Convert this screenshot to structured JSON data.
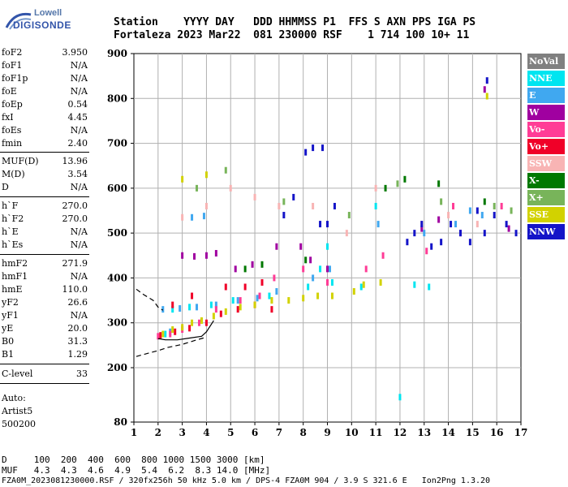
{
  "logo": {
    "line1": "Lowell",
    "line2": "DIGISONDE"
  },
  "header": {
    "line1": "Station    YYYY DAY   DDD HHMMSS P1  FFS S AXN PPS IGA PS",
    "line2": "Fortaleza 2023 Mar22  081 230000 RSF    1 714 100 10+ 11"
  },
  "params": [
    {
      "k": "foF2",
      "v": "3.950"
    },
    {
      "k": "foF1",
      "v": "N/A"
    },
    {
      "k": "foF1p",
      "v": "N/A"
    },
    {
      "k": "foE",
      "v": "N/A"
    },
    {
      "k": "foEp",
      "v": "0.54"
    },
    {
      "k": "fxI",
      "v": "4.45"
    },
    {
      "k": "foEs",
      "v": "N/A"
    },
    {
      "k": "fmin",
      "v": "2.40"
    },
    {
      "k": "MUF(D)",
      "v": "13.96"
    },
    {
      "k": "M(D)",
      "v": "3.54"
    },
    {
      "k": "D",
      "v": "N/A"
    },
    {
      "k": "h`F",
      "v": "270.0"
    },
    {
      "k": "h`F2",
      "v": "270.0"
    },
    {
      "k": "h`E",
      "v": "N/A"
    },
    {
      "k": "h`Es",
      "v": "N/A"
    },
    {
      "k": "hmF2",
      "v": "271.9"
    },
    {
      "k": "hmF1",
      "v": "N/A"
    },
    {
      "k": "hmE",
      "v": "110.0"
    },
    {
      "k": "yF2",
      "v": "26.6"
    },
    {
      "k": "yF1",
      "v": "N/A"
    },
    {
      "k": "yE",
      "v": "20.0"
    },
    {
      "k": "B0",
      "v": "31.3"
    },
    {
      "k": "B1",
      "v": "1.29"
    },
    {
      "k": "C-level",
      "v": "33"
    }
  ],
  "auto": {
    "line1": "Auto:",
    "line2": "Artist5",
    "line3": "500200"
  },
  "bottom": {
    "d_row": "D     100  200  400  600  800 1000 1500 3000 [km]",
    "muf_row": "MUF   4.3  4.3  4.6  4.9  5.4  6.2  8.3 14.0 [MHz]",
    "file_row": "FZA0M_2023081230000.RSF / 320fx256h 50 kHz 5.0 km / DPS-4 FZA0M 904 / 3.9 S 321.6 E   Ion2Png 1.3.20"
  },
  "legend": [
    {
      "label": "NoVal",
      "color": "#808080"
    },
    {
      "label": "NNE",
      "color": "#00e5f0"
    },
    {
      "label": "E",
      "color": "#40a8f0"
    },
    {
      "label": "W",
      "color": "#a000a0"
    },
    {
      "label": "Vo-",
      "color": "#ff3c96"
    },
    {
      "label": "Vo+",
      "color": "#f00028"
    },
    {
      "label": "SSW",
      "color": "#f8b4b4"
    },
    {
      "label": "X-",
      "color": "#007800"
    },
    {
      "label": "X+",
      "color": "#78b45a"
    },
    {
      "label": "SSE",
      "color": "#d2d200"
    },
    {
      "label": "NNW",
      "color": "#1414c8"
    }
  ],
  "chart_data": {
    "type": "scatter",
    "xlim": [
      1,
      17
    ],
    "ylim": [
      80,
      900
    ],
    "x_ticks": [
      "1",
      "2",
      "3",
      "4",
      "5",
      "6",
      "7",
      "8",
      "9",
      "10",
      "11",
      "12",
      "13",
      "14",
      "15",
      "16",
      "17"
    ],
    "y_ticks": [
      "80",
      "200",
      "300",
      "400",
      "500",
      "600",
      "700",
      "800",
      "900"
    ],
    "grid": true,
    "legend_placement": "right",
    "series": [
      {
        "name": "NNE",
        "points": [
          [
            2.6,
            330
          ],
          [
            3.3,
            335
          ],
          [
            4.2,
            340
          ],
          [
            5.1,
            350
          ],
          [
            6.6,
            360
          ],
          [
            8.2,
            380
          ],
          [
            9.2,
            390
          ],
          [
            10.4,
            380
          ],
          [
            12.6,
            385
          ],
          [
            13.2,
            380
          ],
          [
            2.3,
            275
          ],
          [
            8.7,
            420
          ],
          [
            9.0,
            470
          ],
          [
            11.0,
            560
          ],
          [
            12.0,
            135
          ]
        ]
      },
      {
        "name": "E",
        "points": [
          [
            2.2,
            330
          ],
          [
            2.9,
            332
          ],
          [
            3.6,
            335
          ],
          [
            4.4,
            340
          ],
          [
            5.3,
            350
          ],
          [
            6.1,
            355
          ],
          [
            6.9,
            370
          ],
          [
            8.4,
            400
          ],
          [
            9.1,
            420
          ],
          [
            11.1,
            520
          ],
          [
            13.0,
            500
          ],
          [
            14.3,
            520
          ],
          [
            14.9,
            550
          ],
          [
            15.4,
            540
          ],
          [
            3.4,
            535
          ],
          [
            3.9,
            538
          ],
          [
            2.5,
            280
          ]
        ]
      },
      {
        "name": "W",
        "points": [
          [
            3.0,
            450
          ],
          [
            3.5,
            448
          ],
          [
            4.0,
            450
          ],
          [
            4.4,
            455
          ],
          [
            5.2,
            420
          ],
          [
            5.9,
            430
          ],
          [
            6.9,
            470
          ],
          [
            7.9,
            470
          ],
          [
            8.3,
            440
          ],
          [
            9.0,
            420
          ],
          [
            12.9,
            510
          ],
          [
            13.6,
            530
          ],
          [
            14.5,
            500
          ],
          [
            15.5,
            820
          ],
          [
            16.5,
            510
          ]
        ]
      },
      {
        "name": "Vo-",
        "points": [
          [
            2.0,
            270
          ],
          [
            2.5,
            275
          ],
          [
            3.0,
            285
          ],
          [
            3.7,
            300
          ],
          [
            4.4,
            330
          ],
          [
            5.4,
            350
          ],
          [
            6.2,
            360
          ],
          [
            6.8,
            400
          ],
          [
            8.0,
            420
          ],
          [
            9.0,
            390
          ],
          [
            10.6,
            420
          ],
          [
            11.3,
            450
          ],
          [
            13.1,
            460
          ],
          [
            14.2,
            560
          ],
          [
            16.2,
            560
          ]
        ]
      },
      {
        "name": "Vo+",
        "points": [
          [
            2.1,
            272
          ],
          [
            2.7,
            280
          ],
          [
            3.3,
            288
          ],
          [
            4.0,
            300
          ],
          [
            4.6,
            320
          ],
          [
            5.3,
            330
          ],
          [
            6.0,
            340
          ],
          [
            6.7,
            330
          ],
          [
            5.6,
            380
          ],
          [
            6.3,
            390
          ],
          [
            2.6,
            340
          ],
          [
            3.4,
            360
          ],
          [
            4.8,
            380
          ]
        ]
      },
      {
        "name": "SSW",
        "points": [
          [
            3.0,
            535
          ],
          [
            4.0,
            560
          ],
          [
            5.0,
            600
          ],
          [
            6.0,
            580
          ],
          [
            7.0,
            560
          ],
          [
            8.4,
            560
          ],
          [
            9.8,
            500
          ],
          [
            11.0,
            600
          ],
          [
            12.9,
            520
          ],
          [
            14.0,
            540
          ],
          [
            15.2,
            520
          ]
        ]
      },
      {
        "name": "X-",
        "points": [
          [
            5.6,
            420
          ],
          [
            6.3,
            430
          ],
          [
            8.1,
            440
          ],
          [
            11.4,
            600
          ],
          [
            12.2,
            620
          ],
          [
            13.6,
            610
          ],
          [
            15.5,
            570
          ]
        ]
      },
      {
        "name": "X+",
        "points": [
          [
            3.6,
            600
          ],
          [
            4.8,
            640
          ],
          [
            7.2,
            570
          ],
          [
            9.9,
            540
          ],
          [
            11.9,
            610
          ],
          [
            13.7,
            570
          ],
          [
            15.9,
            560
          ],
          [
            16.6,
            550
          ]
        ]
      },
      {
        "name": "SSE",
        "points": [
          [
            2.2,
            275
          ],
          [
            2.6,
            285
          ],
          [
            3.0,
            290
          ],
          [
            3.4,
            300
          ],
          [
            3.8,
            305
          ],
          [
            4.3,
            315
          ],
          [
            4.8,
            325
          ],
          [
            5.4,
            335
          ],
          [
            6.0,
            340
          ],
          [
            6.7,
            350
          ],
          [
            7.4,
            350
          ],
          [
            8.0,
            355
          ],
          [
            8.6,
            360
          ],
          [
            9.2,
            360
          ],
          [
            10.1,
            370
          ],
          [
            10.5,
            385
          ],
          [
            11.2,
            390
          ],
          [
            15.6,
            805
          ],
          [
            3.0,
            620
          ],
          [
            4.0,
            630
          ]
        ]
      },
      {
        "name": "NNW",
        "points": [
          [
            7.2,
            540
          ],
          [
            7.6,
            580
          ],
          [
            8.1,
            680
          ],
          [
            8.4,
            690
          ],
          [
            8.8,
            690
          ],
          [
            9.3,
            560
          ],
          [
            12.3,
            480
          ],
          [
            12.6,
            500
          ],
          [
            12.9,
            520
          ],
          [
            13.3,
            470
          ],
          [
            13.7,
            480
          ],
          [
            14.1,
            520
          ],
          [
            14.5,
            500
          ],
          [
            14.9,
            480
          ],
          [
            15.2,
            550
          ],
          [
            15.5,
            500
          ],
          [
            15.9,
            540
          ],
          [
            16.4,
            520
          ],
          [
            16.8,
            500
          ],
          [
            15.6,
            840
          ],
          [
            8.7,
            520
          ],
          [
            9.0,
            520
          ]
        ]
      }
    ],
    "curves": [
      {
        "name": "solid",
        "points": [
          [
            2.0,
            265
          ],
          [
            2.3,
            262
          ],
          [
            2.8,
            262
          ],
          [
            3.3,
            266
          ],
          [
            3.8,
            270
          ],
          [
            4.0,
            280
          ],
          [
            4.3,
            305
          ]
        ]
      },
      {
        "name": "dashed-upper",
        "points": [
          [
            1.1,
            375
          ],
          [
            1.4,
            363
          ],
          [
            1.8,
            350
          ],
          [
            2.0,
            335
          ],
          [
            2.2,
            328
          ]
        ]
      },
      {
        "name": "dashed-lower",
        "points": [
          [
            1.1,
            225
          ],
          [
            1.5,
            231
          ],
          [
            2.0,
            238
          ],
          [
            2.4,
            245
          ],
          [
            3.0,
            252
          ],
          [
            3.6,
            262
          ],
          [
            4.0,
            268
          ]
        ]
      }
    ]
  }
}
